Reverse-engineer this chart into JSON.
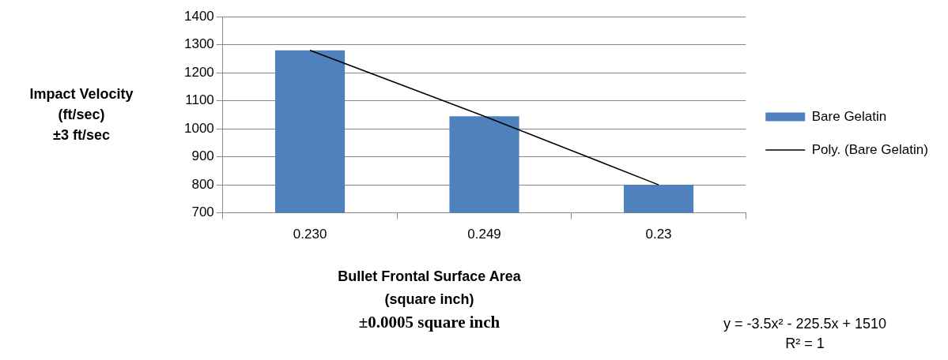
{
  "chart_data": {
    "type": "bar",
    "xlabel": "Bullet Frontal Surface Area\n(square inch)\n±0.0005 square inch",
    "ylabel": "Impact Velocity\n(ft/sec)\n±3 ft/sec",
    "categories": [
      "0.230",
      "0.249",
      "0.23"
    ],
    "series": [
      {
        "name": "Bare Gelatin",
        "color": "#4f81bd",
        "values": [
          1280,
          1045,
          800
        ]
      },
      {
        "name": "Poly. (Bare Gelatin)",
        "type": "line",
        "color": "#000000",
        "values": [
          1280,
          1045,
          800
        ]
      }
    ],
    "ylim": [
      700,
      1400
    ],
    "yticks": [
      700,
      800,
      900,
      1000,
      1100,
      1200,
      1300,
      1400
    ],
    "grid": "y",
    "legend": "right",
    "marker": "none",
    "annotations": [
      "y = -3.5x² - 225.5x + 1510",
      "R² = 1"
    ]
  }
}
